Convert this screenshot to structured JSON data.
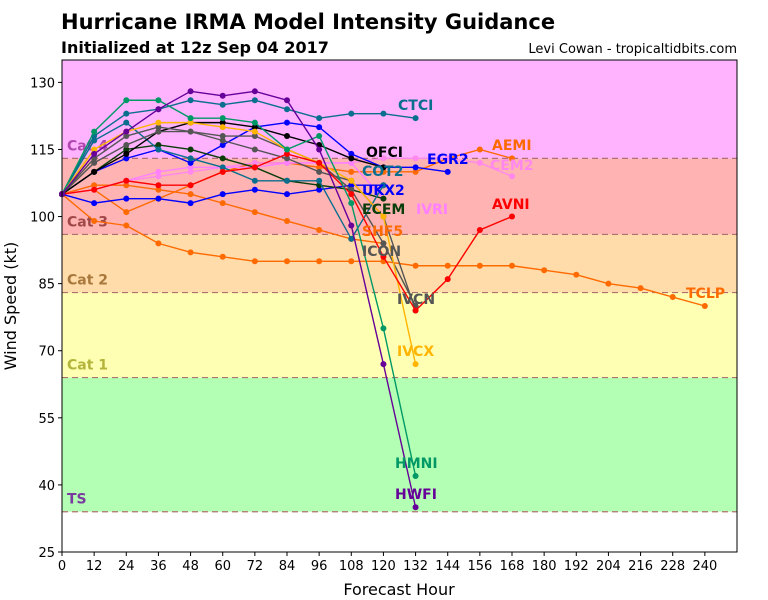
{
  "title": "Hurricane IRMA Model Intensity Guidance",
  "subtitle": "Initialized at 12z Sep 04 2017",
  "credit": "Levi Cowan - tropicaltidbits.com",
  "chart_data": {
    "type": "line",
    "xlabel": "Forecast Hour",
    "ylabel": "Wind Speed (kt)",
    "xlim": [
      0,
      252
    ],
    "ylim": [
      25,
      135
    ],
    "xticks": [
      0,
      12,
      24,
      36,
      48,
      60,
      72,
      84,
      96,
      108,
      120,
      132,
      144,
      156,
      168,
      180,
      192,
      204,
      216,
      228,
      240
    ],
    "yticks": [
      25,
      40,
      55,
      70,
      85,
      100,
      115,
      130
    ],
    "grid": false,
    "bands": [
      {
        "name": "TS",
        "from": 34,
        "to": 64,
        "color": "#b3ffb3",
        "label_color": "#7a3aa0"
      },
      {
        "name": "Cat 1",
        "from": 64,
        "to": 83,
        "color": "#ffffb3",
        "label_color": "#b4b43c"
      },
      {
        "name": "Cat 2",
        "from": 83,
        "to": 96,
        "color": "#ffdcaa",
        "label_color": "#a8783c"
      },
      {
        "name": "Cat 3",
        "from": 96,
        "to": 113,
        "color": "#ffb3b3",
        "label_color": "#a04848"
      },
      {
        "name": "Cat 4",
        "from": 113,
        "to": 135,
        "color": "#ffb3ff",
        "label_color": "#b048b0"
      }
    ],
    "series": [
      {
        "name": "TCLP",
        "color": "#ff6a00",
        "values": [
          105,
          99,
          98,
          94,
          92,
          91,
          90,
          90,
          90,
          90,
          90,
          89,
          89,
          89,
          89,
          88,
          87,
          85,
          84,
          82,
          80
        ]
      },
      {
        "name": "SHF5",
        "color": "#ff6a00",
        "values": [
          105,
          107,
          107,
          106,
          105,
          103,
          101,
          99,
          97,
          95,
          94
        ]
      },
      {
        "name": "AEMI",
        "color": "#ff6a00",
        "values": [
          105,
          106,
          101,
          104,
          107,
          110,
          112,
          112,
          111,
          110,
          110,
          110,
          113,
          115,
          113
        ]
      },
      {
        "name": "CEM2",
        "color": "#ff88ee",
        "values": [
          105,
          106,
          108,
          109,
          110,
          111,
          112,
          112,
          112,
          112,
          113,
          113,
          113,
          112,
          109
        ]
      },
      {
        "name": "IVRI",
        "color": "#ff80ff",
        "values": [
          105,
          106,
          108,
          110,
          111,
          111,
          111,
          112,
          112,
          112,
          104
        ]
      },
      {
        "name": "UKX2",
        "color": "#0000ff",
        "values": [
          105,
          103,
          104,
          104,
          103,
          105,
          106,
          105,
          106,
          107,
          107
        ]
      },
      {
        "name": "EGR2",
        "color": "#0000ff",
        "values": [
          105,
          110,
          113,
          115,
          112,
          116,
          120,
          121,
          120,
          114,
          111,
          111,
          110
        ]
      },
      {
        "name": "ECEM",
        "color": "#0b3d0b",
        "values": [
          105,
          110,
          115,
          116,
          115,
          113,
          111,
          108,
          107,
          106,
          104
        ]
      },
      {
        "name": "COT2",
        "color": "#0a6e8e",
        "values": [
          105,
          117,
          121,
          115,
          113,
          111,
          108,
          108,
          108,
          95,
          107
        ]
      },
      {
        "name": "CTCI",
        "color": "#0a6e8e",
        "values": [
          105,
          118,
          123,
          124,
          126,
          125,
          126,
          124,
          122,
          123,
          123,
          122
        ]
      },
      {
        "name": "OFCI",
        "color": "#000000",
        "values": [
          105,
          110,
          114,
          119,
          121,
          121,
          120,
          118,
          116,
          113,
          111
        ]
      },
      {
        "name": "ICON",
        "color": "#555555",
        "values": [
          105,
          113,
          118,
          120,
          119,
          118,
          118,
          115,
          112,
          106,
          94,
          80
        ]
      },
      {
        "name": "IVCN",
        "color": "#555555",
        "values": [
          105,
          112,
          116,
          119,
          119,
          117,
          115,
          113,
          110,
          108,
          100,
          79
        ]
      },
      {
        "name": "IVCX",
        "color": "#ffb400",
        "values": [
          105,
          115,
          119,
          121,
          121,
          120,
          119,
          115,
          112,
          108,
          100,
          67
        ]
      },
      {
        "name": "AVNI",
        "color": "#ff0000",
        "values": [
          105,
          106,
          108,
          107,
          107,
          110,
          111,
          114,
          112,
          105,
          91,
          79,
          86,
          97,
          100
        ]
      },
      {
        "name": "HMNI",
        "color": "#009966",
        "values": [
          105,
          119,
          126,
          126,
          122,
          122,
          121,
          115,
          118,
          103,
          75,
          42
        ]
      },
      {
        "name": "HWFI",
        "color": "#660099",
        "values": [
          105,
          114,
          119,
          124,
          128,
          127,
          128,
          126,
          115,
          98,
          67,
          35
        ]
      }
    ]
  }
}
